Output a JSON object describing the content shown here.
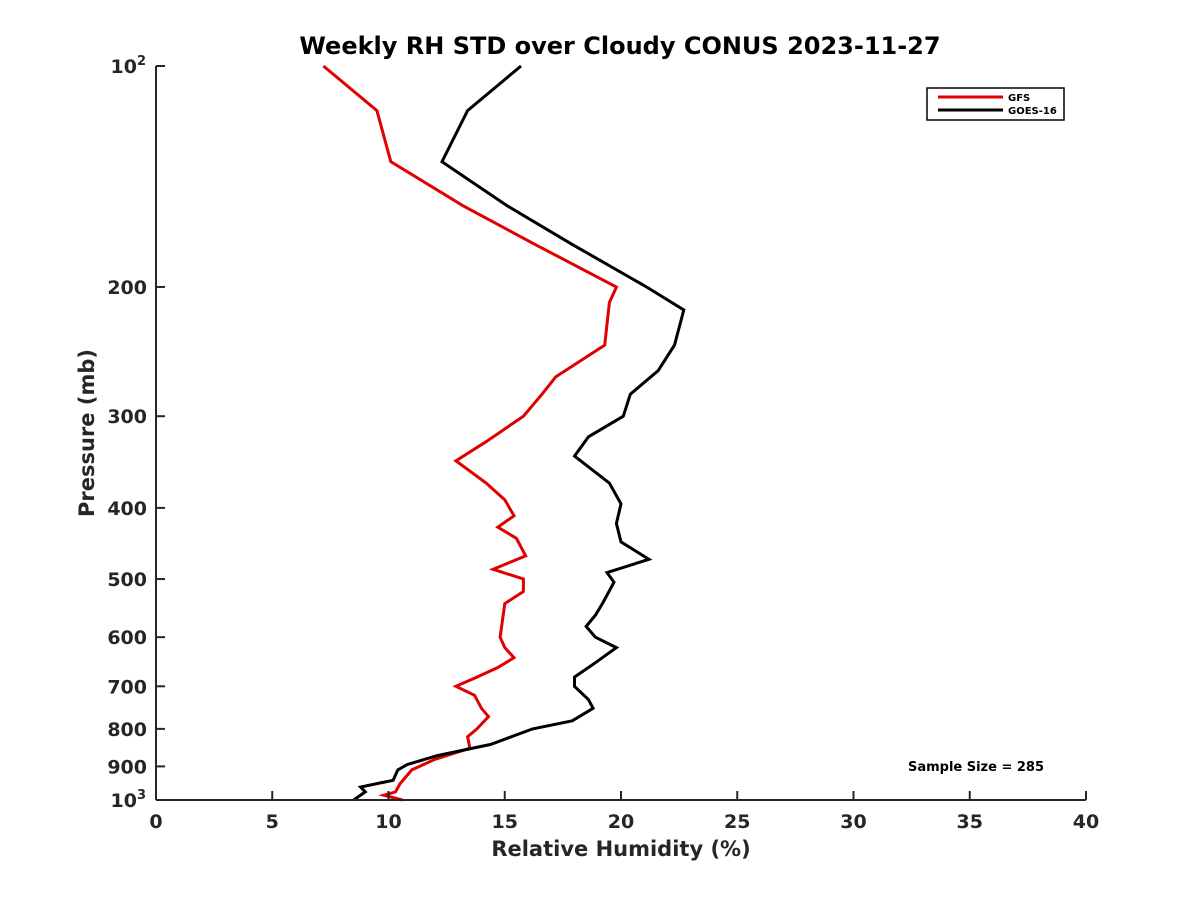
{
  "chart_data": {
    "type": "line",
    "title": "Weekly RH STD over Cloudy CONUS 2023-11-27",
    "xlabel": "Relative Humidity (%)",
    "ylabel": "Pressure (mb)",
    "xlim": [
      0,
      40
    ],
    "ylim": [
      1000,
      100
    ],
    "yscale": "log",
    "y_reversed": true,
    "x_ticks": [
      "0",
      "5",
      "10",
      "15",
      "20",
      "25",
      "30",
      "35",
      "40"
    ],
    "y_ticks": [
      {
        "value": 100,
        "label_base": "10",
        "label_exp": "2"
      },
      {
        "value": 200,
        "label_base": "200",
        "label_exp": ""
      },
      {
        "value": 300,
        "label_base": "300",
        "label_exp": ""
      },
      {
        "value": 400,
        "label_base": "400",
        "label_exp": ""
      },
      {
        "value": 500,
        "label_base": "500",
        "label_exp": ""
      },
      {
        "value": 600,
        "label_base": "600",
        "label_exp": ""
      },
      {
        "value": 700,
        "label_base": "700",
        "label_exp": ""
      },
      {
        "value": 800,
        "label_base": "800",
        "label_exp": ""
      },
      {
        "value": 900,
        "label_base": "900",
        "label_exp": ""
      },
      {
        "value": 1000,
        "label_base": "10",
        "label_exp": "3"
      }
    ],
    "grid": false,
    "legend_position": "top-right",
    "annotation": "Sample Size = 285",
    "series": [
      {
        "name": "GFS",
        "color": "#e00000",
        "points": [
          [
            7.2,
            100
          ],
          [
            9.5,
            115
          ],
          [
            10.1,
            135
          ],
          [
            13.2,
            155
          ],
          [
            16.3,
            175
          ],
          [
            19.8,
            200
          ],
          [
            19.5,
            210
          ],
          [
            19.3,
            240
          ],
          [
            17.2,
            265
          ],
          [
            16.6,
            280
          ],
          [
            15.8,
            300
          ],
          [
            14.2,
            325
          ],
          [
            12.9,
            345
          ],
          [
            14.2,
            370
          ],
          [
            15.0,
            390
          ],
          [
            15.4,
            410
          ],
          [
            14.7,
            425
          ],
          [
            15.5,
            440
          ],
          [
            15.9,
            465
          ],
          [
            14.5,
            485
          ],
          [
            15.8,
            500
          ],
          [
            15.8,
            520
          ],
          [
            15.0,
            540
          ],
          [
            14.9,
            570
          ],
          [
            14.8,
            600
          ],
          [
            15.0,
            620
          ],
          [
            15.4,
            640
          ],
          [
            14.7,
            660
          ],
          [
            13.8,
            680
          ],
          [
            12.9,
            700
          ],
          [
            13.7,
            720
          ],
          [
            14.0,
            750
          ],
          [
            14.3,
            770
          ],
          [
            13.8,
            800
          ],
          [
            13.4,
            820
          ],
          [
            13.5,
            850
          ],
          [
            12.0,
            880
          ],
          [
            11.0,
            910
          ],
          [
            10.5,
            950
          ],
          [
            10.3,
            975
          ],
          [
            9.8,
            985
          ],
          [
            10.6,
            1000
          ]
        ]
      },
      {
        "name": "GOES-16",
        "color": "#000000",
        "points": [
          [
            15.7,
            100
          ],
          [
            13.4,
            115
          ],
          [
            12.3,
            135
          ],
          [
            15.1,
            155
          ],
          [
            17.9,
            175
          ],
          [
            21.1,
            200
          ],
          [
            22.7,
            215
          ],
          [
            22.3,
            240
          ],
          [
            21.6,
            260
          ],
          [
            20.4,
            280
          ],
          [
            20.1,
            300
          ],
          [
            18.6,
            320
          ],
          [
            18.0,
            340
          ],
          [
            19.5,
            370
          ],
          [
            20.0,
            395
          ],
          [
            19.8,
            420
          ],
          [
            20.0,
            445
          ],
          [
            21.2,
            470
          ],
          [
            19.4,
            490
          ],
          [
            19.7,
            505
          ],
          [
            19.2,
            540
          ],
          [
            18.9,
            560
          ],
          [
            18.5,
            580
          ],
          [
            18.9,
            600
          ],
          [
            19.8,
            620
          ],
          [
            18.9,
            650
          ],
          [
            18.0,
            680
          ],
          [
            18.0,
            700
          ],
          [
            18.6,
            730
          ],
          [
            18.8,
            750
          ],
          [
            17.9,
            780
          ],
          [
            16.2,
            800
          ],
          [
            14.4,
            840
          ],
          [
            12.1,
            870
          ],
          [
            10.8,
            895
          ],
          [
            10.4,
            910
          ],
          [
            10.2,
            940
          ],
          [
            8.8,
            960
          ],
          [
            9.0,
            975
          ],
          [
            8.5,
            1000
          ]
        ]
      }
    ]
  }
}
